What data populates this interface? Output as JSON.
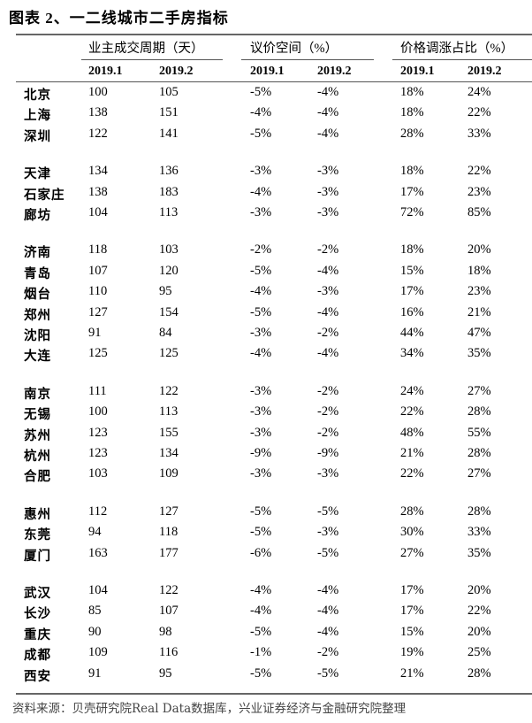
{
  "title": "图表 2、一二线城市二手房指标",
  "groups": [
    "业主成交周期（天）",
    "议价空间（%）",
    "价格调涨占比（%）"
  ],
  "years": [
    "2019.1",
    "2019.2",
    "2019.1",
    "2019.2",
    "2019.1",
    "2019.2"
  ],
  "row_groups": [
    [
      [
        "北京",
        "100",
        "105",
        "-5%",
        "-4%",
        "18%",
        "24%"
      ],
      [
        "上海",
        "138",
        "151",
        "-4%",
        "-4%",
        "18%",
        "22%"
      ],
      [
        "深圳",
        "122",
        "141",
        "-5%",
        "-4%",
        "28%",
        "33%"
      ]
    ],
    [
      [
        "天津",
        "134",
        "136",
        "-3%",
        "-3%",
        "18%",
        "22%"
      ],
      [
        "石家庄",
        "138",
        "183",
        "-4%",
        "-3%",
        "17%",
        "23%"
      ],
      [
        "廊坊",
        "104",
        "113",
        "-3%",
        "-3%",
        "72%",
        "85%"
      ]
    ],
    [
      [
        "济南",
        "118",
        "103",
        "-2%",
        "-2%",
        "18%",
        "20%"
      ],
      [
        "青岛",
        "107",
        "120",
        "-5%",
        "-4%",
        "15%",
        "18%"
      ],
      [
        "烟台",
        "110",
        "95",
        "-4%",
        "-3%",
        "17%",
        "23%"
      ],
      [
        "郑州",
        "127",
        "154",
        "-5%",
        "-4%",
        "16%",
        "21%"
      ],
      [
        "沈阳",
        "91",
        "84",
        "-3%",
        "-2%",
        "44%",
        "47%"
      ],
      [
        "大连",
        "125",
        "125",
        "-4%",
        "-4%",
        "34%",
        "35%"
      ]
    ],
    [
      [
        "南京",
        "111",
        "122",
        "-3%",
        "-2%",
        "24%",
        "27%"
      ],
      [
        "无锡",
        "100",
        "113",
        "-3%",
        "-2%",
        "22%",
        "28%"
      ],
      [
        "苏州",
        "123",
        "155",
        "-3%",
        "-2%",
        "48%",
        "55%"
      ],
      [
        "杭州",
        "123",
        "134",
        "-9%",
        "-9%",
        "21%",
        "28%"
      ],
      [
        "合肥",
        "103",
        "109",
        "-3%",
        "-3%",
        "22%",
        "27%"
      ]
    ],
    [
      [
        "惠州",
        "112",
        "127",
        "-5%",
        "-5%",
        "28%",
        "28%"
      ],
      [
        "东莞",
        "94",
        "118",
        "-5%",
        "-3%",
        "30%",
        "33%"
      ],
      [
        "厦门",
        "163",
        "177",
        "-6%",
        "-5%",
        "27%",
        "35%"
      ]
    ],
    [
      [
        "武汉",
        "104",
        "122",
        "-4%",
        "-4%",
        "17%",
        "20%"
      ],
      [
        "长沙",
        "85",
        "107",
        "-4%",
        "-4%",
        "17%",
        "22%"
      ],
      [
        "重庆",
        "90",
        "98",
        "-5%",
        "-4%",
        "15%",
        "20%"
      ],
      [
        "成都",
        "109",
        "116",
        "-1%",
        "-2%",
        "19%",
        "25%"
      ],
      [
        "西安",
        "91",
        "95",
        "-5%",
        "-5%",
        "21%",
        "28%"
      ]
    ]
  ],
  "source": "资料来源：贝壳研究院Real Data数据库，兴业证券经济与金融研究院整理"
}
